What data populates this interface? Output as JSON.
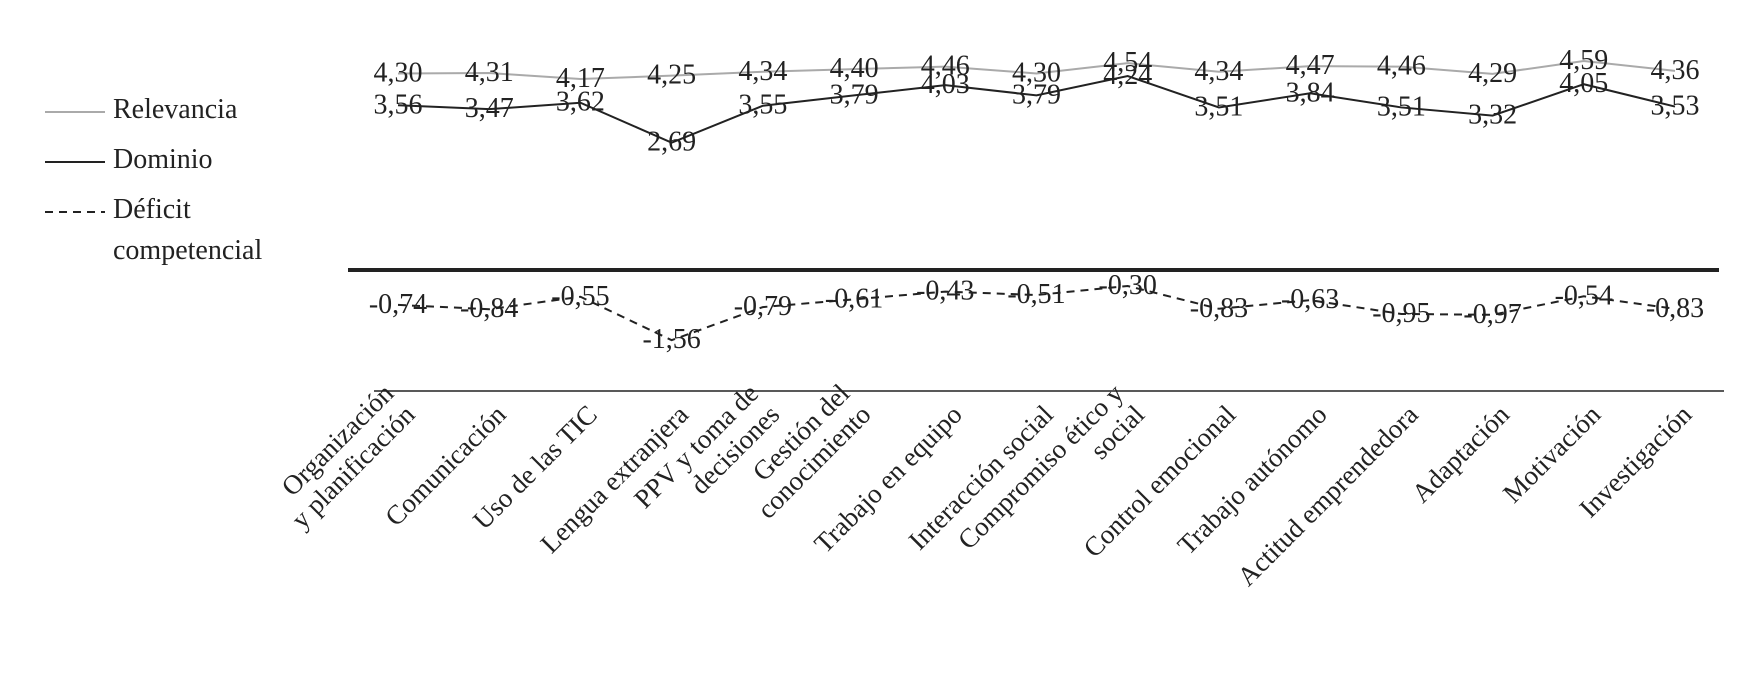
{
  "chart_data": {
    "type": "line",
    "categories": [
      "Organización\ny planificación",
      "Comunicación",
      "Uso de las TIC",
      "Lengua extranjera",
      "PPV y toma de\ndecisiones",
      "Gestión del\nconocimiento",
      "Trabajo en equipo",
      "Interacción social",
      "Compromiso ético y\nsocial",
      "Control emocional",
      "Trabajo autónomo",
      "Actitud emprendedora",
      "Adaptación",
      "Motivación",
      "Investigación"
    ],
    "series": [
      {
        "name": "Relevancia",
        "color": "#aaaaaa",
        "dash": false,
        "values": [
          4.3,
          4.31,
          4.17,
          4.25,
          4.34,
          4.4,
          4.46,
          4.3,
          4.54,
          4.34,
          4.47,
          4.46,
          4.29,
          4.59,
          4.36
        ],
        "value_labels": [
          "4,30",
          "4,31",
          "4,17",
          "4,25",
          "4,34",
          "4,40",
          "4,46",
          "4,30",
          "4,54",
          "4,34",
          "4,47",
          "4,46",
          "4,29",
          "4,59",
          "4,36"
        ]
      },
      {
        "name": "Dominio",
        "color": "#222222",
        "dash": false,
        "values": [
          3.56,
          3.47,
          3.62,
          2.69,
          3.55,
          3.79,
          4.03,
          3.79,
          4.24,
          3.51,
          3.84,
          3.51,
          3.32,
          4.05,
          3.53
        ],
        "value_labels": [
          "3,56",
          "3,47",
          "3,62",
          "2,69",
          "3,55",
          "3,79",
          "4,03",
          "3,79",
          "4,24",
          "3,51",
          "3,84",
          "3,51",
          "3,32",
          "4,05",
          "3,53"
        ]
      },
      {
        "name": "Déficit\ncompetencial",
        "color": "#222222",
        "dash": true,
        "values": [
          -0.74,
          -0.84,
          -0.55,
          -1.56,
          -0.79,
          -0.61,
          -0.43,
          -0.51,
          -0.3,
          -0.83,
          -0.63,
          -0.95,
          -0.97,
          -0.54,
          -0.83
        ],
        "value_labels": [
          "-0,74",
          "-0,84",
          "-0,55",
          "-1,56",
          "-0,79",
          "-0,61",
          "-0,43",
          "-0,51",
          "-0,30",
          "-0,83",
          "-0,63",
          "-0,95",
          "-0,97",
          "-0,54",
          "-0,83"
        ]
      }
    ]
  }
}
